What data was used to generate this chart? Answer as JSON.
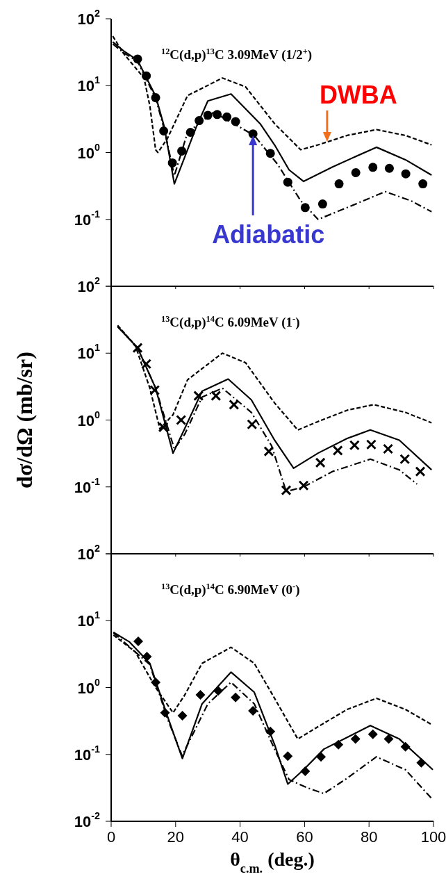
{
  "chart_data": [
    {
      "type": "line",
      "title": "$^{12}$C(d,p)$^{13}$C 3.09MeV (1/2$^{+}$)",
      "log": "y",
      "tick_labels": "y",
      "xlim": [
        0,
        100
      ],
      "xticks": [
        0,
        20,
        40,
        60,
        80,
        100
      ],
      "ylim": [
        0.01,
        100
      ],
      "yticks": [
        {
          "value": 100,
          "label": "10$^{2}$"
        },
        {
          "value": 10,
          "label": "10$^{1}$"
        },
        {
          "value": 1,
          "label": "10$^{0}$"
        },
        {
          "value": 0.1,
          "label": "10$^{-1}$"
        },
        {
          "value": 0.01,
          "label": null
        }
      ],
      "annotations": [
        {
          "text": "DWBA",
          "x": 67,
          "y": 1.45
        },
        {
          "text": "Adiabatic",
          "x": 44,
          "y": 1.8
        }
      ],
      "series": [
        {
          "line_style": "dashed",
          "color": "#000000",
          "x": [
            0.5,
            3.9,
            10.2,
            12,
            13.8,
            14.5,
            17.4,
            23.7,
            34.5,
            41.7,
            50.7,
            58.8,
            64.2,
            73.2,
            82.3,
            91.3,
            99.4
          ],
          "values": [
            55,
            30,
            13,
            5,
            1.1,
            1.0,
            1.6,
            7.1,
            13,
            9.6,
            2.7,
            1.1,
            1.3,
            1.8,
            2.2,
            1.8,
            1.3
          ]
        },
        {
          "line_style": "solid",
          "color": "#000000",
          "x": [
            0.5,
            3.9,
            8.2,
            13.8,
            16.5,
            19.6,
            22.8,
            26.4,
            30,
            37.2,
            46.2,
            50.7,
            55.2,
            59.7,
            68.7,
            82.3,
            91.3,
            99.4
          ],
          "values": [
            45,
            33,
            24,
            7,
            2.4,
            0.34,
            0.85,
            2.4,
            5.9,
            7.5,
            2.7,
            1.3,
            0.55,
            0.37,
            0.61,
            1.2,
            0.78,
            0.46
          ]
        },
        {
          "line_style": "dashdot",
          "color": "#000000",
          "x": [
            0.5,
            3.9,
            8.2,
            13.8,
            16.5,
            19.6,
            23.7,
            31.8,
            44.4,
            51.6,
            58.8,
            64.2,
            73.2,
            85,
            93,
            99.4
          ],
          "values": [
            42,
            31,
            23,
            6.5,
            2.2,
            0.45,
            2.0,
            4.0,
            1.8,
            0.67,
            0.19,
            0.1,
            0.15,
            0.26,
            0.19,
            0.13
          ]
        },
        {
          "type": "scatter",
          "marker": "circle",
          "color": "#000000",
          "x": [
            8.2,
            10.9,
            13.8,
            16.3,
            19.0,
            21.9,
            24.6,
            27.3,
            30.0,
            32.9,
            35.9,
            38.6,
            44.0,
            49.4,
            54.8,
            60.2,
            65.6,
            70.7,
            75.9,
            81.2,
            86.3,
            91.4,
            96.7
          ],
          "values": [
            25,
            14,
            6.6,
            2.1,
            0.7,
            1.05,
            2.0,
            3.0,
            3.6,
            3.7,
            3.4,
            2.9,
            1.9,
            0.97,
            0.36,
            0.15,
            0.17,
            0.34,
            0.5,
            0.6,
            0.58,
            0.48,
            0.34
          ]
        }
      ]
    },
    {
      "type": "line",
      "title": "$^{13}$C(d,p)$^{14}$C 6.09MeV (1$^{-}$)",
      "ylabel": "dσ/dΩ (mb/sr)",
      "log": "y",
      "tick_labels": "y",
      "xlim": [
        0,
        100
      ],
      "xticks": [
        0,
        20,
        40,
        60,
        80,
        100
      ],
      "ylim": [
        0.01,
        100
      ],
      "yticks": [
        {
          "value": 100,
          "label": "10$^{2}$"
        },
        {
          "value": 10,
          "label": "10$^{1}$"
        },
        {
          "value": 1,
          "label": "10$^{0}$"
        },
        {
          "value": 0.1,
          "label": "10$^{-1}$"
        },
        {
          "value": 0.01,
          "label": null
        }
      ],
      "series": [
        {
          "line_style": "dashed",
          "color": "#000000",
          "x": [
            2,
            7.5,
            12,
            15.1,
            19.2,
            23.7,
            34.5,
            41.7,
            50.7,
            57.9,
            64.2,
            73.2,
            81.4,
            91.3,
            99.4
          ],
          "values": [
            26,
            13,
            3.0,
            0.74,
            1.2,
            4.0,
            10,
            7.2,
            1.8,
            0.71,
            0.95,
            1.4,
            1.7,
            1.3,
            0.91
          ]
        },
        {
          "line_style": "solid",
          "color": "#000000",
          "x": [
            2,
            8.2,
            13.8,
            19.2,
            22.8,
            28.2,
            36.3,
            43.5,
            50.7,
            56.6,
            64.2,
            73.2,
            80.4,
            89.4,
            99.4
          ],
          "values": [
            25,
            12,
            3.0,
            0.32,
            0.74,
            2.7,
            4.1,
            2.0,
            0.5,
            0.19,
            0.32,
            0.53,
            0.71,
            0.5,
            0.18
          ]
        },
        {
          "line_style": "dashdot",
          "color": "#000000",
          "x": [
            2,
            8.2,
            13.8,
            19.6,
            22.8,
            28.2,
            34.5,
            43.5,
            49.8,
            54.3,
            59.7,
            68.7,
            80.4,
            89.4,
            94.9
          ],
          "values": [
            25,
            12,
            3.0,
            0.37,
            0.61,
            2.2,
            3.0,
            1.3,
            0.41,
            0.085,
            0.1,
            0.17,
            0.26,
            0.18,
            0.11
          ]
        },
        {
          "type": "scatter",
          "marker": "cross",
          "color": "#000000",
          "x": [
            8.2,
            10.9,
            13.5,
            16.2,
            21.7,
            27.1,
            32.5,
            38.1,
            43.7,
            48.9,
            54.3,
            59.7,
            64.9,
            70.3,
            75.5,
            80.7,
            85.9,
            91.1,
            95.9
          ],
          "values": [
            12,
            6.9,
            2.8,
            0.78,
            1.0,
            2.3,
            2.3,
            1.7,
            0.86,
            0.34,
            0.089,
            0.105,
            0.23,
            0.35,
            0.42,
            0.43,
            0.37,
            0.26,
            0.17
          ]
        }
      ]
    },
    {
      "type": "line",
      "title": "$^{13}$C(d,p)$^{14}$C 6.90MeV (0$^{-}$)",
      "xlabel": "θ$_{c.m.}$ (deg.)",
      "log": "y",
      "xlim": [
        0,
        100
      ],
      "xticks": [
        0,
        20,
        40,
        60,
        80,
        100
      ],
      "ylim": [
        0.01,
        100
      ],
      "yticks": [
        {
          "value": 100,
          "label": "10$^{2}$"
        },
        {
          "value": 10,
          "label": "10$^{1}$"
        },
        {
          "value": 1,
          "label": "10$^{0}$"
        },
        {
          "value": 0.1,
          "label": "10$^{-1}$"
        },
        {
          "value": 0.01,
          "label": "10$^{-2}$"
        }
      ],
      "series": [
        {
          "line_style": "dashed",
          "color": "#000000",
          "x": [
            0.7,
            7.5,
            13.8,
            19.2,
            22.8,
            28.2,
            37.2,
            44.4,
            50.7,
            57.9,
            64.2,
            73.2,
            82.3,
            91.3,
            99.4
          ],
          "values": [
            6.1,
            3.4,
            1.0,
            0.42,
            0.77,
            2.3,
            4.0,
            2.3,
            0.69,
            0.17,
            0.26,
            0.47,
            0.69,
            0.47,
            0.28
          ]
        },
        {
          "line_style": "solid",
          "color": "#000000",
          "x": [
            0.7,
            5.7,
            12,
            17.4,
            22.1,
            28.2,
            37.2,
            44.4,
            50.7,
            54.8,
            59.7,
            66,
            73.2,
            80.4,
            89.4,
            99.8
          ],
          "values": [
            6.7,
            4.8,
            2.3,
            0.38,
            0.087,
            0.57,
            1.7,
            0.85,
            0.14,
            0.036,
            0.059,
            0.12,
            0.18,
            0.27,
            0.17,
            0.059
          ]
        },
        {
          "line_style": "dashdot",
          "color": "#000000",
          "x": [
            0.7,
            12,
            17.4,
            22,
            24.6,
            30,
            37.2,
            44.4,
            50.7,
            55.2,
            60.6,
            66,
            73.2,
            82.3,
            91.3,
            99.4
          ],
          "values": [
            6.6,
            2.2,
            0.35,
            0.096,
            0.17,
            0.57,
            1.2,
            0.57,
            0.12,
            0.042,
            0.032,
            0.026,
            0.044,
            0.092,
            0.059,
            0.022
          ]
        },
        {
          "type": "scatter",
          "marker": "diamond",
          "color": "#000000",
          "x": [
            8.4,
            11.1,
            13.8,
            16.7,
            22.1,
            27.7,
            33.2,
            38.6,
            44,
            49.4,
            54.8,
            60.2,
            65.1,
            70.5,
            75.8,
            81.2,
            86.1,
            91.3,
            96.2
          ],
          "values": [
            4.9,
            2.9,
            1.2,
            0.42,
            0.38,
            0.78,
            0.89,
            0.71,
            0.45,
            0.22,
            0.094,
            0.056,
            0.092,
            0.14,
            0.17,
            0.2,
            0.17,
            0.13,
            0.075
          ]
        }
      ]
    }
  ]
}
